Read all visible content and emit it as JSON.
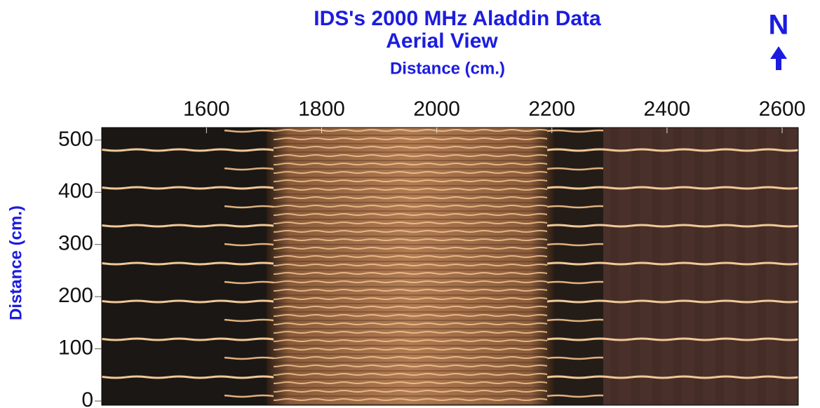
{
  "chart_data": {
    "type": "image",
    "title": "IDS's 2000 MHz Aladdin Data",
    "subtitle": "Aerial View",
    "x_label": "Distance (cm.)",
    "y_label": "Distance (cm.)",
    "annotation": "N",
    "xlim": [
      1418,
      2628
    ],
    "xticks": [
      1600,
      1800,
      2000,
      2200,
      2400,
      2600
    ],
    "ylim": [
      -8,
      524
    ],
    "yticks": [
      0,
      100,
      200,
      300,
      400,
      500
    ]
  }
}
